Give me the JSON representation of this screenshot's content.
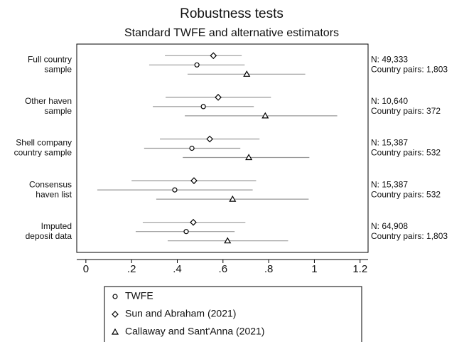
{
  "chart_data": {
    "type": "coefplot",
    "title": "Robustness tests",
    "subtitle": "Standard TWFE and alternative estimators",
    "categories": [
      [
        "Full country",
        "sample"
      ],
      [
        "Other haven",
        "sample"
      ],
      [
        "Shell company",
        "country sample"
      ],
      [
        "Consensus",
        "haven list"
      ],
      [
        "Imputed",
        "deposit data"
      ]
    ],
    "notes": [
      [
        "N: 49,333",
        "Country pairs: 1,803"
      ],
      [
        "N: 10,640",
        "Country pairs: 372"
      ],
      [
        "N: 15,387",
        "Country pairs: 532"
      ],
      [
        "N: 15,387",
        "Country pairs: 532"
      ],
      [
        "N: 64,908",
        "Country pairs: 1,803"
      ]
    ],
    "series": [
      {
        "name": "TWFE",
        "marker": "circle",
        "color": "#999999",
        "values": [
          0.486,
          0.514,
          0.464,
          0.389,
          0.439
        ],
        "lower": [
          0.277,
          0.293,
          0.255,
          0.05,
          0.218
        ],
        "upper": [
          0.695,
          0.735,
          0.676,
          0.73,
          0.651
        ]
      },
      {
        "name": "Sun and Abraham (2021)",
        "marker": "diamond",
        "color": "#999999",
        "values": [
          0.558,
          0.579,
          0.542,
          0.473,
          0.47
        ],
        "lower": [
          0.346,
          0.349,
          0.324,
          0.2,
          0.249
        ],
        "upper": [
          0.682,
          0.81,
          0.76,
          0.745,
          0.698
        ]
      },
      {
        "name": "Callaway and Sant'Anna (2021)",
        "marker": "triangle",
        "color": "#999999",
        "values": [
          0.704,
          0.785,
          0.713,
          0.642,
          0.62
        ],
        "lower": [
          0.445,
          0.433,
          0.424,
          0.308,
          0.358
        ],
        "upper": [
          0.96,
          1.1,
          0.978,
          0.975,
          0.885
        ]
      }
    ],
    "xlim": [
      -0.04,
      1.235
    ],
    "xticks": [
      0,
      {
        "value": 0.2,
        "label": ".2"
      },
      {
        "value": 0.4,
        "label": ".4"
      },
      {
        "value": 0.6,
        "label": ".6"
      },
      {
        "value": 0.8,
        "label": ".8"
      },
      1,
      1.2
    ]
  }
}
